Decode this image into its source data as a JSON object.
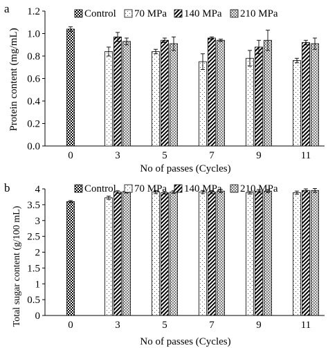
{
  "panel_labels": [
    "a",
    "b"
  ],
  "chart_data": [
    {
      "type": "bar",
      "panel": "a",
      "ylabel": "Protein content (mg/mL)",
      "xlabel": "No of passes (Cycles)",
      "categories": [
        "0",
        "3",
        "5",
        "7",
        "9",
        "11"
      ],
      "ylim": [
        0,
        1.2
      ],
      "yticks": [
        "0.0",
        "0.2",
        "0.4",
        "0.6",
        "0.8",
        "1.0",
        "1.2"
      ],
      "grid": false,
      "legend": "top",
      "series": [
        {
          "name": "Control",
          "values": [
            1.04,
            null,
            null,
            null,
            null,
            null
          ],
          "errors": [
            0.02,
            null,
            null,
            null,
            null,
            null
          ]
        },
        {
          "name": "70 MPa",
          "values": [
            null,
            0.84,
            0.84,
            0.75,
            0.78,
            0.76
          ],
          "errors": [
            null,
            0.04,
            0.02,
            0.07,
            0.07,
            0.02
          ]
        },
        {
          "name": "140 MPa",
          "values": [
            null,
            0.97,
            0.94,
            0.96,
            0.88,
            0.92
          ],
          "errors": [
            null,
            0.04,
            0.02,
            0.01,
            0.06,
            0.02
          ]
        },
        {
          "name": "210 MPa",
          "values": [
            null,
            0.93,
            0.91,
            0.94,
            0.94,
            0.91
          ],
          "errors": [
            null,
            0.03,
            0.06,
            0.01,
            0.09,
            0.05
          ]
        }
      ]
    },
    {
      "type": "bar",
      "panel": "b",
      "ylabel": "Total sugar content (g/100 mL)",
      "xlabel": "No of passes (Cycles)",
      "categories": [
        "0",
        "3",
        "5",
        "7",
        "9",
        "11"
      ],
      "ylim": [
        0,
        4
      ],
      "yticks": [
        "0",
        "0.5",
        "1",
        "1.5",
        "2",
        "2.5",
        "3",
        "3.5",
        "4"
      ],
      "grid": false,
      "legend": "top",
      "series": [
        {
          "name": "Control",
          "values": [
            3.6,
            null,
            null,
            null,
            null,
            null
          ],
          "errors": [
            0.03,
            null,
            null,
            null,
            null,
            null
          ]
        },
        {
          "name": "70 MPa",
          "values": [
            null,
            3.72,
            3.9,
            3.9,
            3.88,
            3.88
          ],
          "errors": [
            null,
            0.05,
            0.05,
            0.05,
            0.04,
            0.05
          ]
        },
        {
          "name": "140 MPa",
          "values": [
            null,
            3.9,
            3.88,
            3.9,
            3.93,
            3.95
          ],
          "errors": [
            null,
            0.04,
            0.04,
            0.05,
            0.05,
            0.05
          ]
        },
        {
          "name": "210 MPa",
          "values": [
            null,
            3.92,
            3.9,
            3.93,
            3.93,
            3.95
          ],
          "errors": [
            null,
            0.05,
            0.04,
            0.05,
            0.05,
            0.06
          ]
        }
      ]
    }
  ]
}
